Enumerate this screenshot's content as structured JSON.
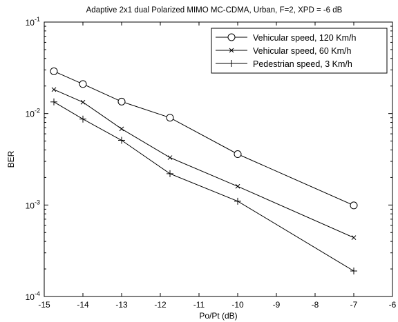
{
  "chart_data": {
    "type": "line",
    "title": "Adaptive 2x1 dual Polarized MIMO MC-CDMA, Urban, F=2, XPD = -6 dB",
    "xlabel": "Po/Pt (dB)",
    "ylabel": "BER",
    "xlim": [
      -15,
      -6
    ],
    "ylim": [
      0.0001,
      0.1
    ],
    "yscale": "log",
    "grid": false,
    "legend_position": "top-right",
    "x_ticks": [
      "-15",
      "-14",
      "-13",
      "-12",
      "-11",
      "-10",
      "-9",
      "-8",
      "-7",
      "-6"
    ],
    "y_ticks": [
      {
        "base": "10",
        "exp": "-1"
      },
      {
        "base": "10",
        "exp": "-2"
      },
      {
        "base": "10",
        "exp": "-3"
      },
      {
        "base": "10",
        "exp": "-4"
      }
    ],
    "series": [
      {
        "name": "Vehicular speed, 120 Km/h",
        "marker": "circle",
        "x": [
          -14.75,
          -14,
          -13,
          -11.75,
          -10,
          -7
        ],
        "y": [
          0.029,
          0.021,
          0.0135,
          0.009,
          0.0036,
          0.00099
        ]
      },
      {
        "name": "Vehicular speed, 60 Km/h",
        "marker": "x",
        "x": [
          -14.75,
          -14,
          -13,
          -11.75,
          -10,
          -7
        ],
        "y": [
          0.0183,
          0.0133,
          0.0068,
          0.0033,
          0.0016,
          0.00044
        ]
      },
      {
        "name": "Pedestrian speed, 3 Km/h",
        "marker": "plus",
        "x": [
          -14.75,
          -14,
          -13,
          -11.75,
          -10,
          -7
        ],
        "y": [
          0.0134,
          0.0087,
          0.0051,
          0.0022,
          0.0011,
          0.00019
        ]
      }
    ]
  }
}
